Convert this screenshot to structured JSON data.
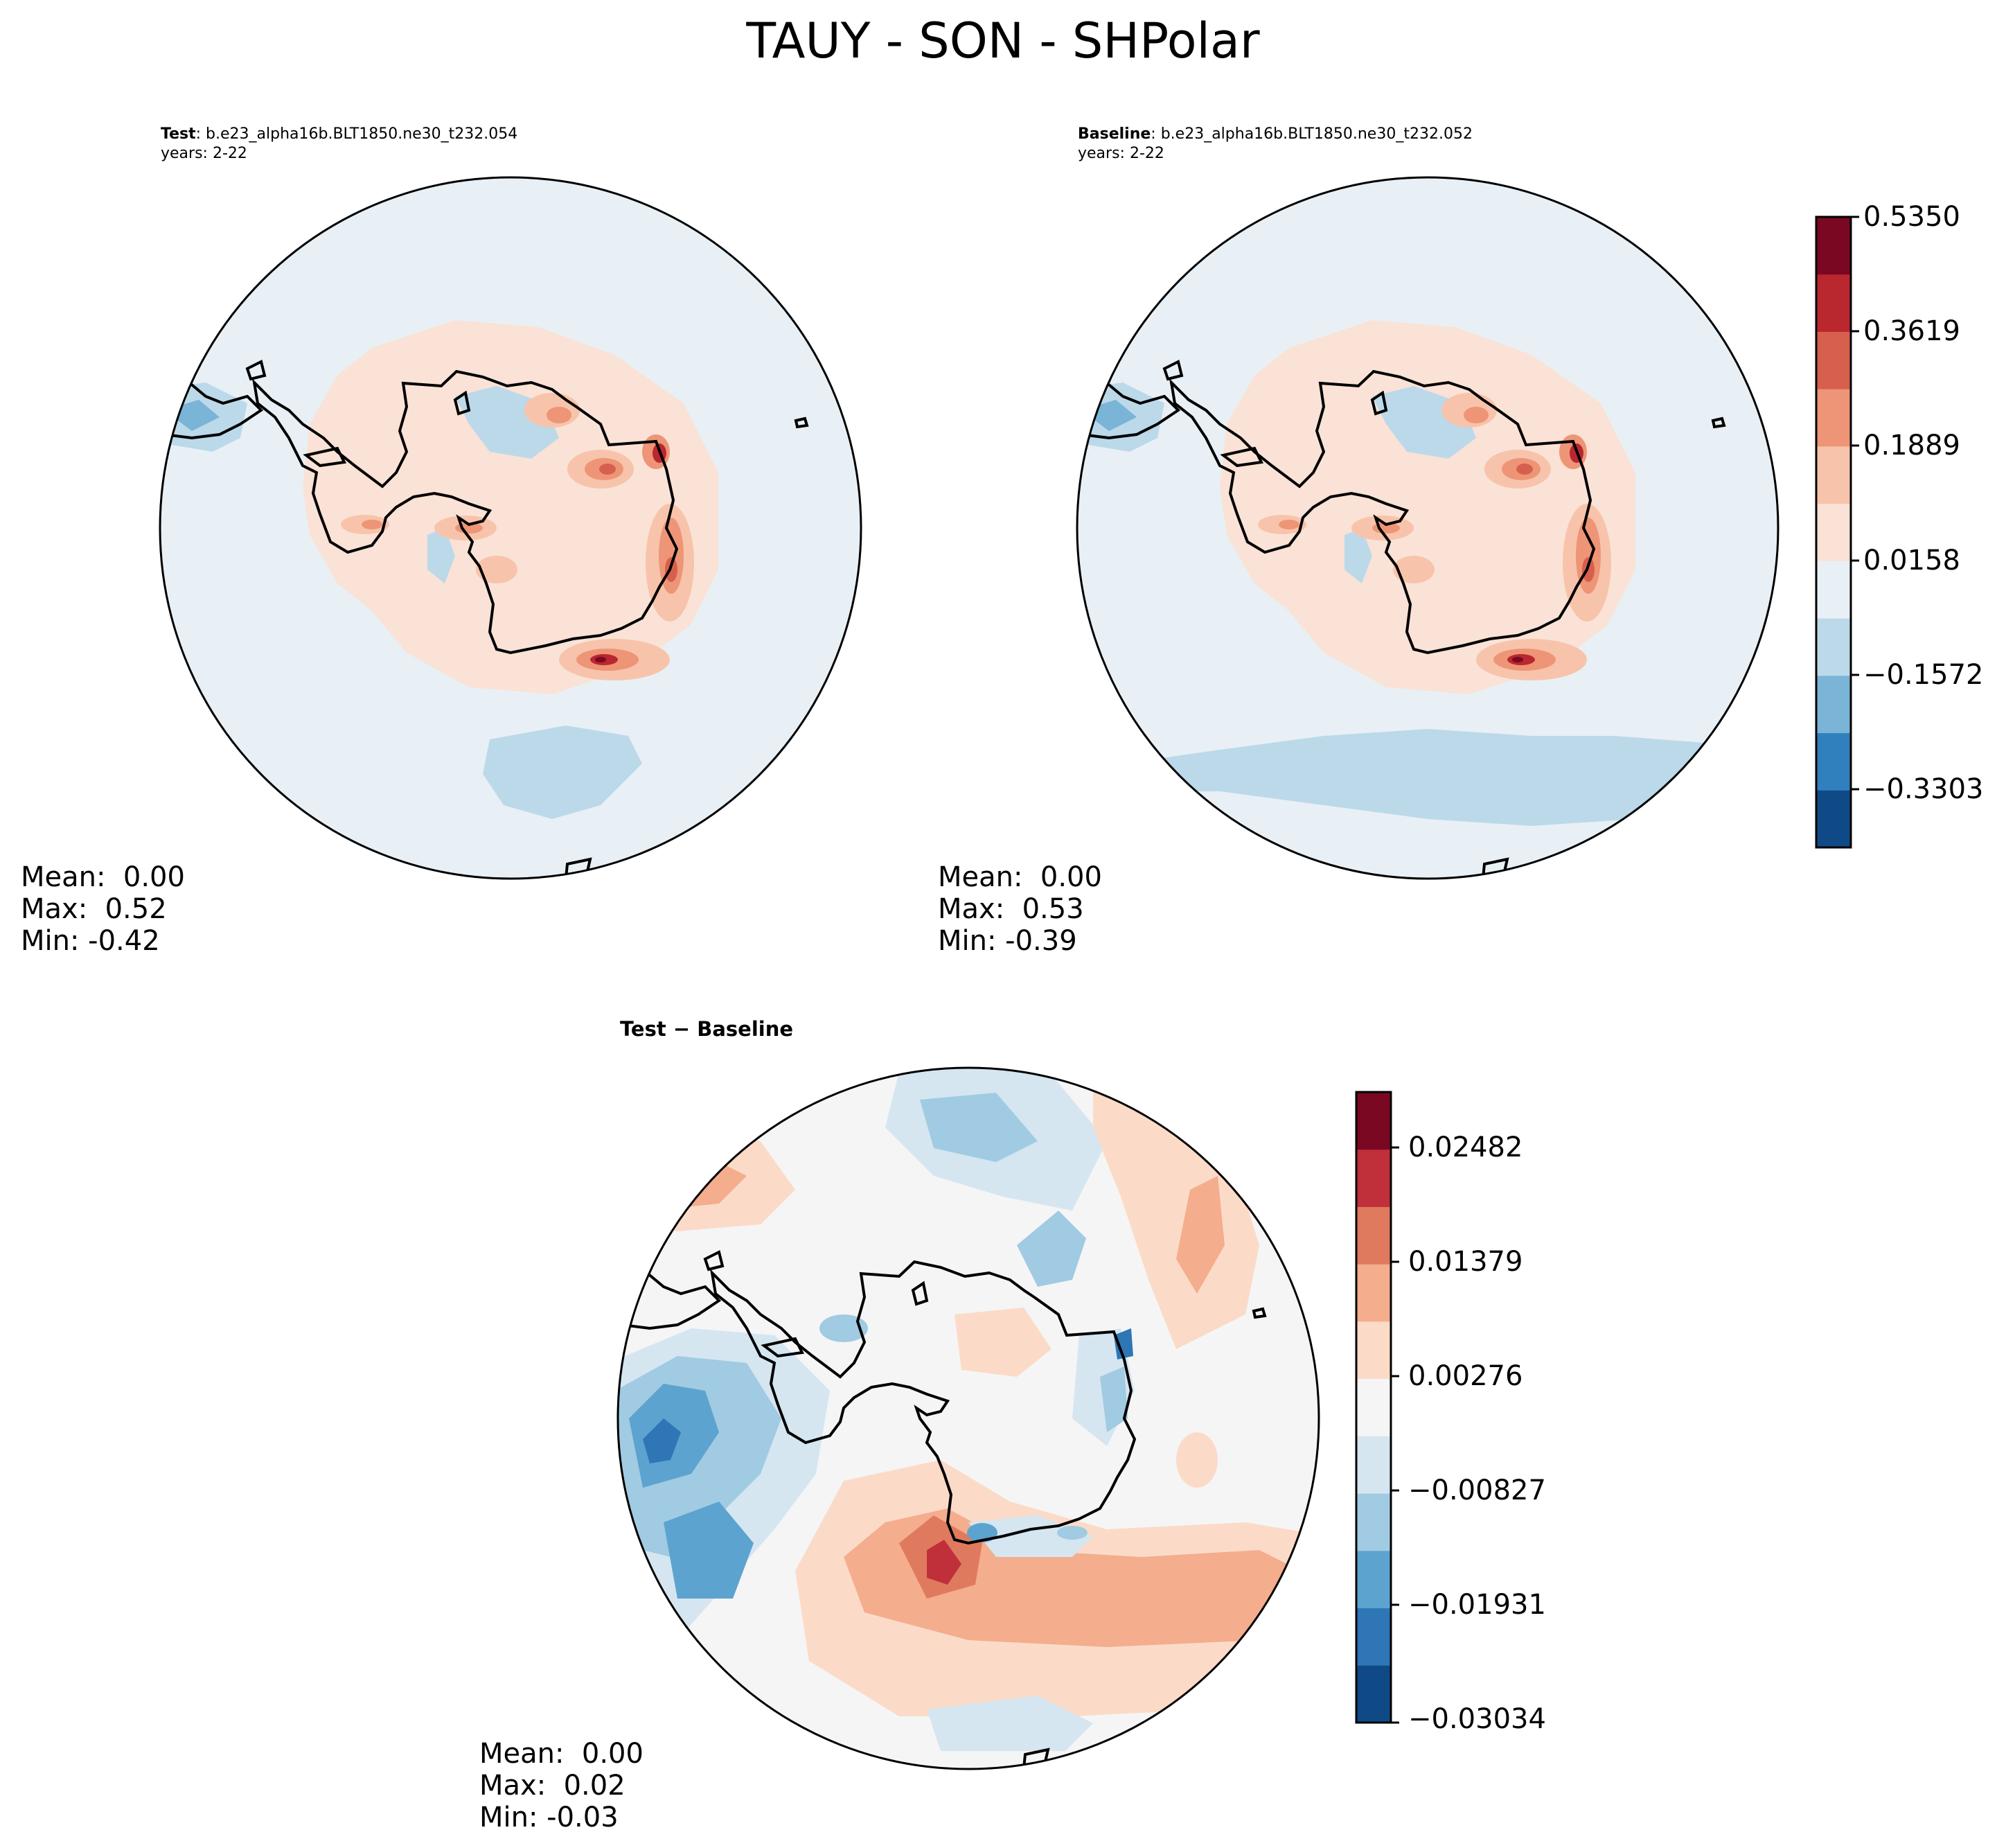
{
  "suptitle": "TAUY - SON - SHPolar",
  "panels": [
    {
      "label": "Test",
      "case": ": b.e23_alpha16b.BLT1850.ne30_t232.054",
      "years": "years: 2-22",
      "stats": {
        "mean": "Mean:  0.00",
        "max": "Max:  0.52",
        "min": "Min: -0.42"
      }
    },
    {
      "label": "Baseline",
      "case": ": b.e23_alpha16b.BLT1850.ne30_t232.052",
      "years": "years: 2-22",
      "stats": {
        "mean": "Mean:  0.00",
        "max": "Max:  0.53",
        "min": "Min: -0.39"
      }
    },
    {
      "label": "Test − Baseline",
      "stats": {
        "mean": "Mean:  0.00",
        "max": "Max:  0.02",
        "min": "Min: -0.03"
      }
    }
  ],
  "colorbars": {
    "main": {
      "tick_labels": [
        "0.5350",
        "0.3619",
        "0.1889",
        "0.0158",
        "−0.1572",
        "−0.3303"
      ],
      "colors": [
        "#0f4a86",
        "#3080bd",
        "#7ab4d6",
        "#bcd9ea",
        "#e8f0f5",
        "#fae2d6",
        "#f7c4ab",
        "#ee9577",
        "#d6604d",
        "#b9272f",
        "#7a0822"
      ]
    },
    "diff": {
      "tick_labels": [
        "0.02482",
        "0.01379",
        "0.00276",
        "−0.00827",
        "−0.01931",
        "−0.03034"
      ],
      "colors": [
        "#0f4a86",
        "#2e76b5",
        "#5da3cf",
        "#a0cbe2",
        "#d5e6f1",
        "#f5f5f5",
        "#fbdbc8",
        "#f4ad8d",
        "#e07a5f",
        "#c0303a",
        "#7a0822"
      ]
    }
  }
}
